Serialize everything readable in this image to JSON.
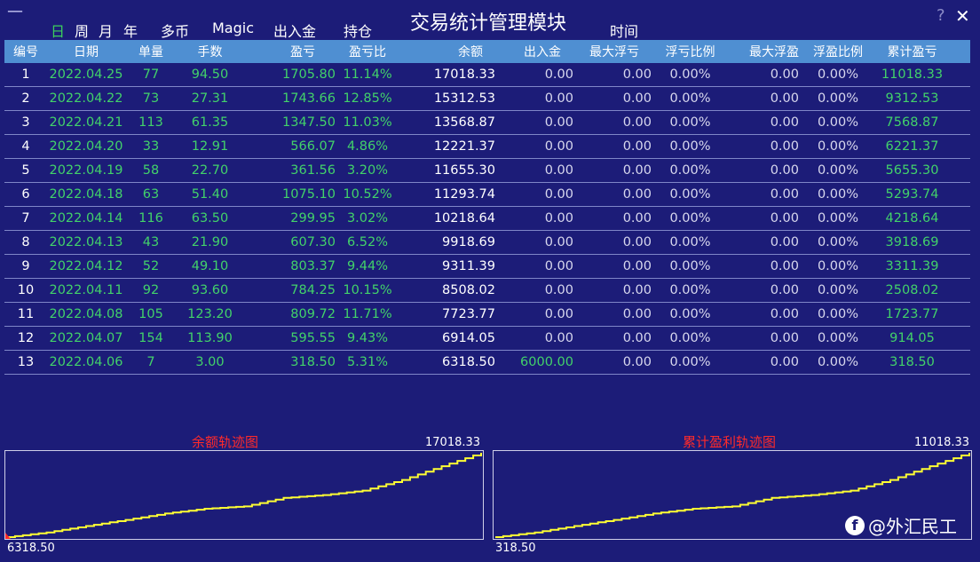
{
  "window": {
    "title": "交易统计管理模块",
    "minimize": "—",
    "help": "?",
    "close": "✕"
  },
  "nav": {
    "day": "日",
    "week": "周",
    "month": "月",
    "year": "年",
    "multi": "多币",
    "magic": "Magic",
    "inout": "出入金",
    "position": "持仓",
    "time": "时间"
  },
  "table": {
    "headers": [
      "编号",
      "日期",
      "单量",
      "手数",
      "盈亏",
      "盈亏比",
      "余额",
      "出入金",
      "最大浮亏",
      "浮亏比例",
      "最大浮盈",
      "浮盈比例",
      "累计盈亏"
    ],
    "rows": [
      [
        "1",
        "2022.04.25",
        "77",
        "94.50",
        "1705.80",
        "11.14%",
        "17018.33",
        "0.00",
        "0.00",
        "0.00%",
        "0.00",
        "0.00%",
        "11018.33"
      ],
      [
        "2",
        "2022.04.22",
        "73",
        "27.31",
        "1743.66",
        "12.85%",
        "15312.53",
        "0.00",
        "0.00",
        "0.00%",
        "0.00",
        "0.00%",
        "9312.53"
      ],
      [
        "3",
        "2022.04.21",
        "113",
        "61.35",
        "1347.50",
        "11.03%",
        "13568.87",
        "0.00",
        "0.00",
        "0.00%",
        "0.00",
        "0.00%",
        "7568.87"
      ],
      [
        "4",
        "2022.04.20",
        "33",
        "12.91",
        "566.07",
        "4.86%",
        "12221.37",
        "0.00",
        "0.00",
        "0.00%",
        "0.00",
        "0.00%",
        "6221.37"
      ],
      [
        "5",
        "2022.04.19",
        "58",
        "22.70",
        "361.56",
        "3.20%",
        "11655.30",
        "0.00",
        "0.00",
        "0.00%",
        "0.00",
        "0.00%",
        "5655.30"
      ],
      [
        "6",
        "2022.04.18",
        "63",
        "51.40",
        "1075.10",
        "10.52%",
        "11293.74",
        "0.00",
        "0.00",
        "0.00%",
        "0.00",
        "0.00%",
        "5293.74"
      ],
      [
        "7",
        "2022.04.14",
        "116",
        "63.50",
        "299.95",
        "3.02%",
        "10218.64",
        "0.00",
        "0.00",
        "0.00%",
        "0.00",
        "0.00%",
        "4218.64"
      ],
      [
        "8",
        "2022.04.13",
        "43",
        "21.90",
        "607.30",
        "6.52%",
        "9918.69",
        "0.00",
        "0.00",
        "0.00%",
        "0.00",
        "0.00%",
        "3918.69"
      ],
      [
        "9",
        "2022.04.12",
        "52",
        "49.10",
        "803.37",
        "9.44%",
        "9311.39",
        "0.00",
        "0.00",
        "0.00%",
        "0.00",
        "0.00%",
        "3311.39"
      ],
      [
        "10",
        "2022.04.11",
        "92",
        "93.60",
        "784.25",
        "10.15%",
        "8508.02",
        "0.00",
        "0.00",
        "0.00%",
        "0.00",
        "0.00%",
        "2508.02"
      ],
      [
        "11",
        "2022.04.08",
        "105",
        "123.20",
        "809.72",
        "11.71%",
        "7723.77",
        "0.00",
        "0.00",
        "0.00%",
        "0.00",
        "0.00%",
        "1723.77"
      ],
      [
        "12",
        "2022.04.07",
        "154",
        "113.90",
        "595.55",
        "9.43%",
        "6914.05",
        "0.00",
        "0.00",
        "0.00%",
        "0.00",
        "0.00%",
        "914.05"
      ],
      [
        "13",
        "2022.04.06",
        "7",
        "3.00",
        "318.50",
        "5.31%",
        "6318.50",
        "6000.00",
        "0.00",
        "0.00%",
        "0.00",
        "0.00%",
        "318.50"
      ]
    ]
  },
  "charts": [
    {
      "title": "余额轨迹图",
      "max_label": "17018.33",
      "min_label": "6318.50",
      "values": [
        6318.5,
        6914.05,
        7723.77,
        8508.02,
        9311.39,
        9918.69,
        10218.64,
        11293.74,
        11655.3,
        12221.37,
        13568.87,
        15312.53,
        17018.33
      ]
    },
    {
      "title": "累计盈利轨迹图",
      "max_label": "11018.33",
      "min_label": "318.50",
      "values": [
        318.5,
        914.05,
        1723.77,
        2508.02,
        3311.39,
        3918.69,
        4218.64,
        5293.74,
        5655.3,
        6221.37,
        7568.87,
        9312.53,
        11018.33
      ]
    }
  ],
  "colors": {
    "background": "#1c1c78",
    "header": "#4f8fd2",
    "green": "#42d26a",
    "line": "#ffff33",
    "chart_title": "#ff2a2a"
  },
  "watermark": {
    "icon": "f",
    "text": "@外汇民工"
  }
}
